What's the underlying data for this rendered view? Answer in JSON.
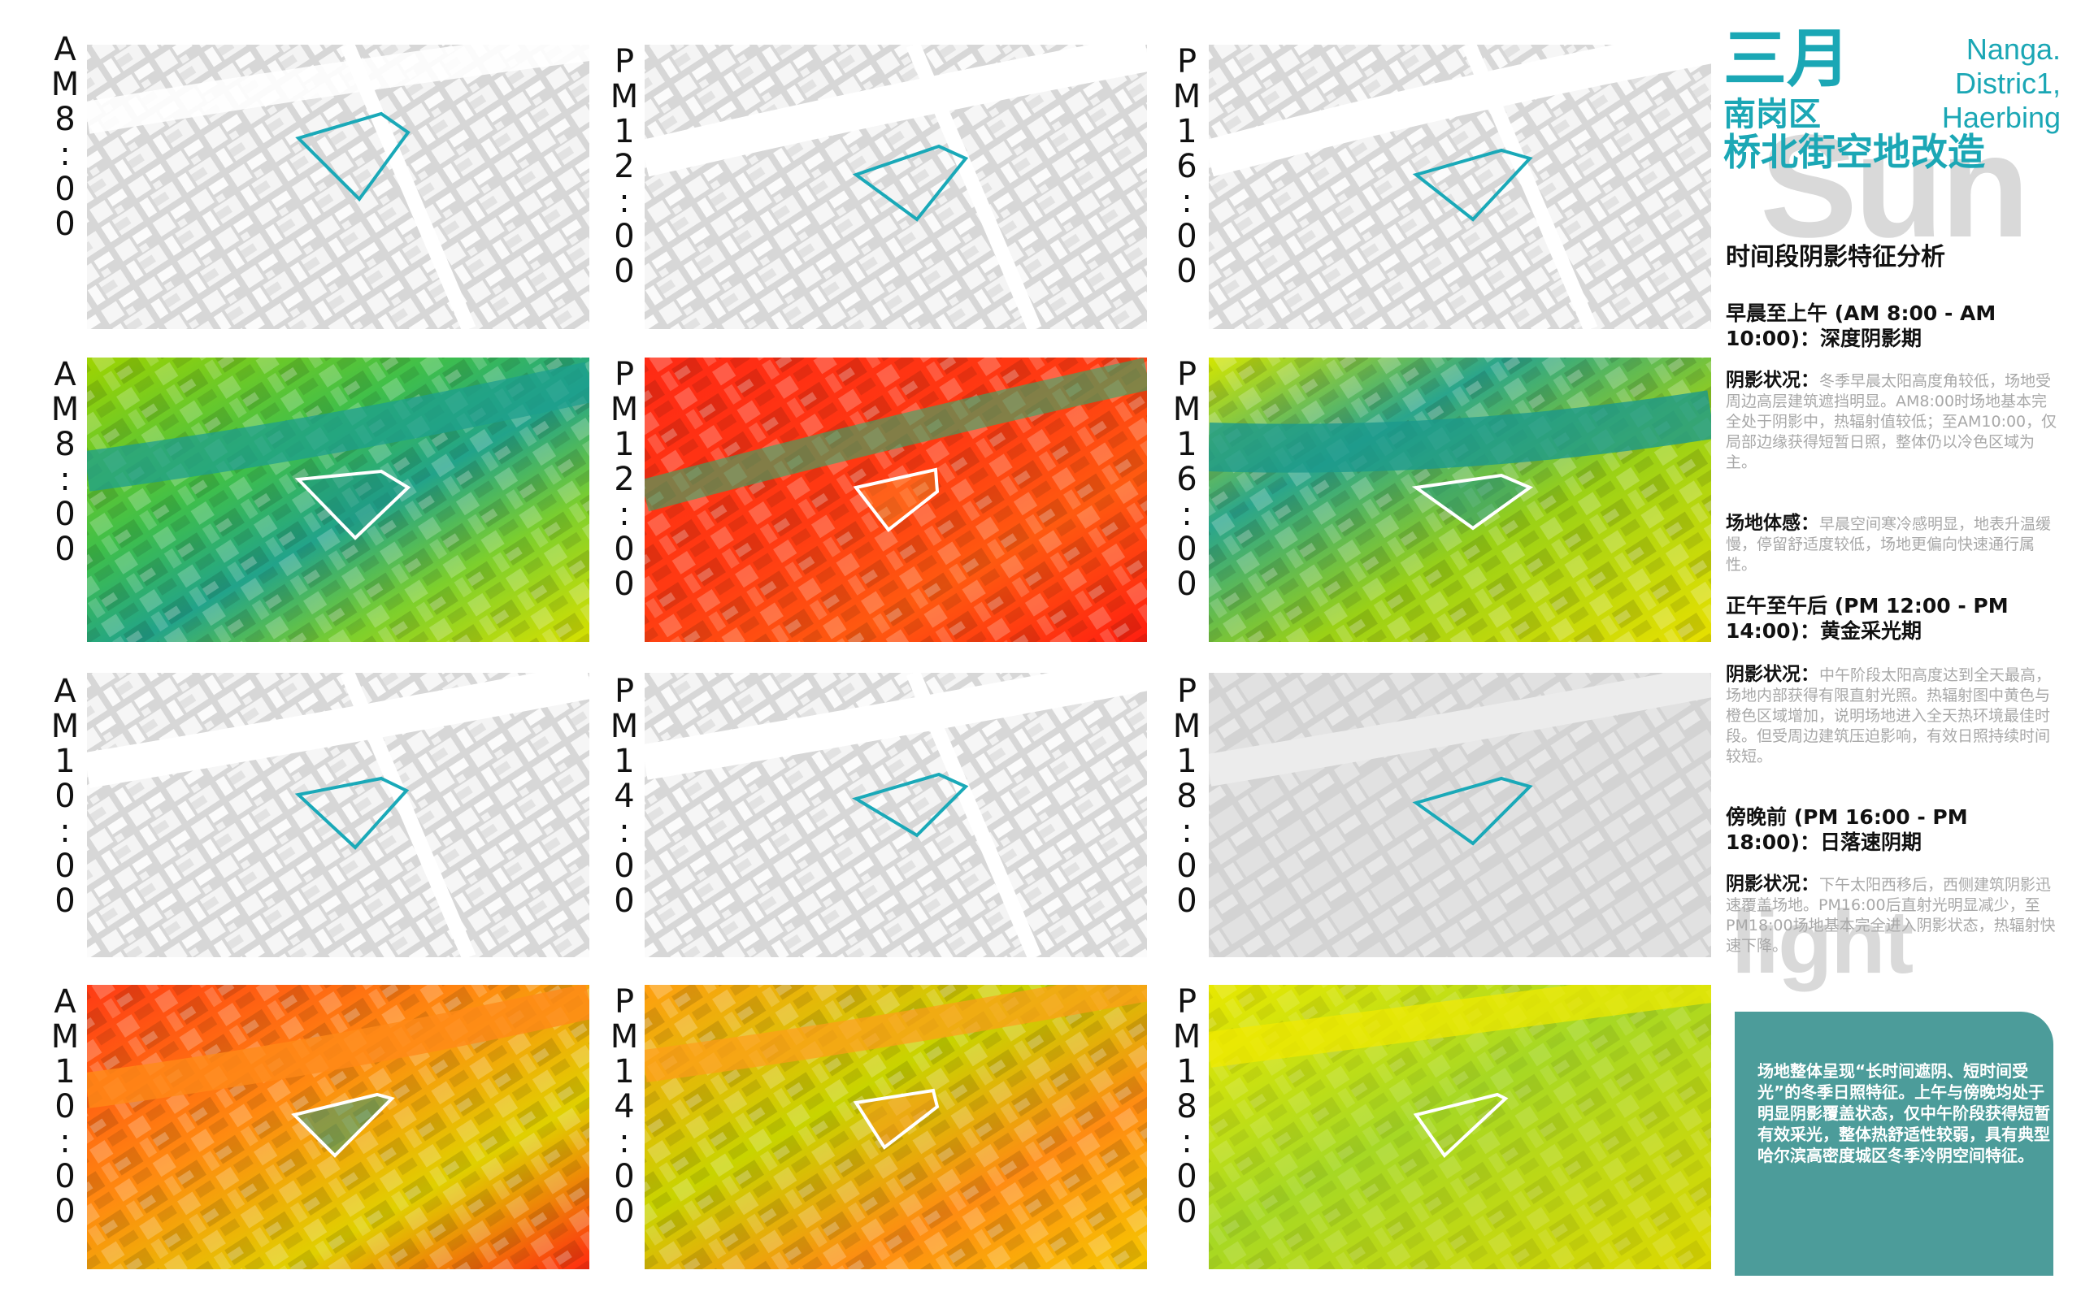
{
  "labels": {
    "r1c1": "AM8:00",
    "r1c2": "PM12:00",
    "r1c3": "PM16:00",
    "r2c1": "AM8:00",
    "r2c2": "PM12:00",
    "r2c3": "PM16:00",
    "r3c1": "AM10:00",
    "r3c2": "PM14:00",
    "r3c3": "PM18:00",
    "r4c1": "AM10:00",
    "r4c2": "PM14:00",
    "r4c3": "PM18:00"
  },
  "title": {
    "month": "三月",
    "district": "南岗区",
    "project": "桥北街空地改造",
    "en_line1": "Nanga.",
    "en_line2": "Distric1,",
    "en_line3": "Haerbing",
    "bg_word1": "Sun",
    "bg_word2": "light"
  },
  "analysis": {
    "heading": "时间段阴影特征分析",
    "p1_title": "早晨至上午 (AM 8:00 - AM 10:00)：深度阴影期",
    "p1_shadow_label": "阴影状况：",
    "p1_shadow_text": "冬季早晨太阳高度角较低，场地受周边高层建筑遮挡明显。AM8:00时场地基本完全处于阴影中，热辐射值较低；至AM10:00，仅局部边缘获得短暂日照，整体仍以冷色区域为主。",
    "p1_feel_label": "场地体感：",
    "p1_feel_text": "早晨空间寒冷感明显，地表升温缓慢，停留舒适度较低，场地更偏向快速通行属性。",
    "p2_title": "正午至午后 (PM 12:00 - PM 14:00)：黄金采光期",
    "p2_shadow_label": "阴影状况：",
    "p2_shadow_text": "中午阶段太阳高度达到全天最高，场地内部获得有限直射光照。热辐射图中黄色与橙色区域增加，说明场地进入全天热环境最佳时段。但受周边建筑压迫影响，有效日照持续时间较短。",
    "p3_title": "傍晚前 (PM 16:00 - PM 18:00)：日落速阴期",
    "p3_shadow_label": "阴影状况：",
    "p3_shadow_text": "下午太阳西移后，西侧建筑阴影迅速覆盖场地。PM16:00后直射光明显减少，至PM18:00场地基本完全进入阴影状态，热辐射快速下降。",
    "summary": "场地整体呈现“长时间遮阴、短时间受光”的冬季日照特征。上午与傍晚均处于明显阴影覆盖状态，仅中午阶段获得短暂有效采光，整体热舒适性较弱，具有典型哈尔滨高密度城区冬季冷阴空间特征。"
  },
  "colors": {
    "accent": "#1ba7b5",
    "summary_bg": "#4c9c9a",
    "site_outline_shadow": "#1aa9b8",
    "site_outline_heat": "#ffffff"
  }
}
